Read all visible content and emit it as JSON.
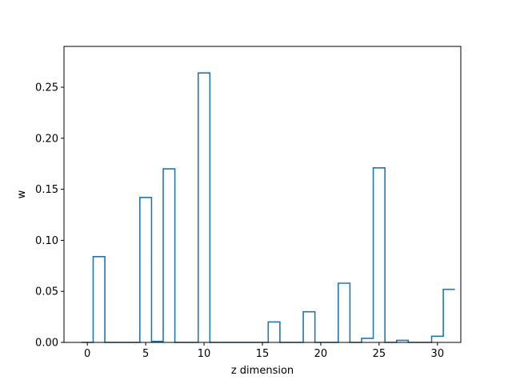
{
  "chart_data": {
    "type": "bar",
    "style": "step-outline",
    "xlabel": "z dimension",
    "ylabel": "w",
    "xlim": [
      -2,
      32
    ],
    "ylim": [
      0,
      0.29
    ],
    "xticks": [
      0,
      5,
      10,
      15,
      20,
      25,
      30
    ],
    "yticks": [
      0.0,
      0.05,
      0.1,
      0.15,
      0.2,
      0.25
    ],
    "grid": false,
    "legend": "none",
    "line_color": "#1f77b4",
    "x": [
      0,
      1,
      2,
      3,
      4,
      5,
      6,
      7,
      8,
      9,
      10,
      11,
      12,
      13,
      14,
      15,
      16,
      17,
      18,
      19,
      20,
      21,
      22,
      23,
      24,
      25,
      26,
      27,
      28,
      29,
      30,
      31
    ],
    "values": [
      0.0,
      0.084,
      0.0,
      0.0,
      0.0,
      0.142,
      0.001,
      0.17,
      0.0,
      0.0,
      0.264,
      0.0,
      0.0,
      0.0,
      0.0,
      0.0,
      0.02,
      0.0,
      0.0,
      0.03,
      0.0,
      0.0,
      0.058,
      0.0,
      0.004,
      0.171,
      0.0,
      0.002,
      0.0,
      0.0,
      0.006,
      0.052
    ]
  }
}
